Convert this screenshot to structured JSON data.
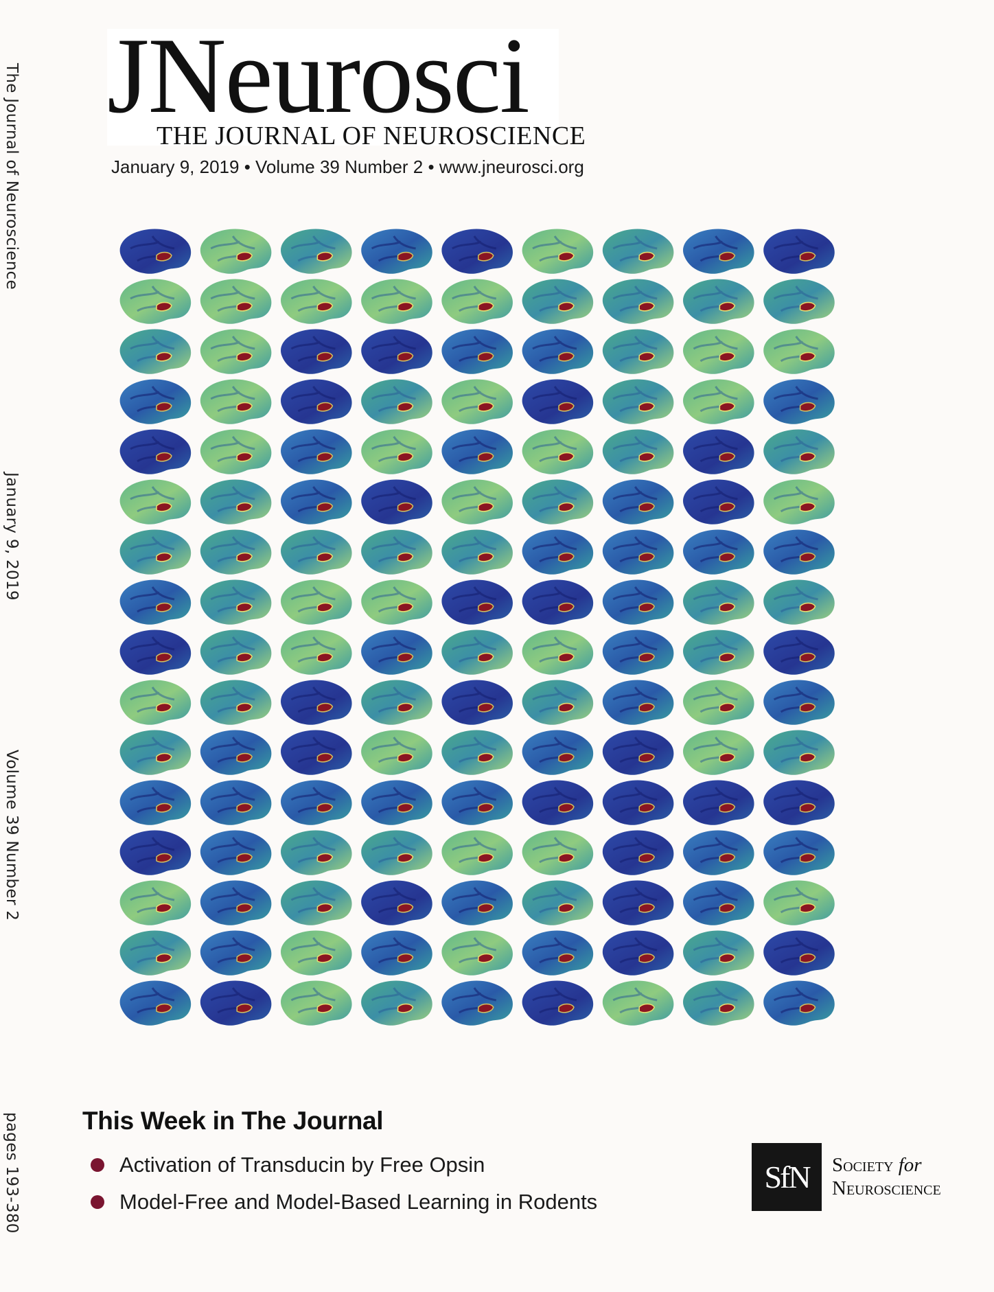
{
  "spine": {
    "journal": "The Journal of Neuroscience",
    "date": "January 9, 2019",
    "volume": "Volume 39 Number 2",
    "pages": "pages 193-380"
  },
  "masthead": {
    "logo": "JNeurosci",
    "subtitle": "THE JOURNAL OF NEUROSCIENCE",
    "issue_line": "January 9, 2019 • Volume 39 Number 2 • www.jneurosci.org"
  },
  "cover_art": {
    "rows": 16,
    "cols": 9,
    "colors": {
      "dark": "#2b3c96",
      "mid": "#2f74b4",
      "light": "#46a98e",
      "pale": "#9fd27e",
      "highlight": "#8b1522"
    }
  },
  "this_week": {
    "heading": "This Week in The Journal",
    "articles": [
      "Activation of Transducin by Free Opsin",
      "Model-Free and Model-Based Learning in Rodents"
    ],
    "bullet_color": "#7a1530"
  },
  "publisher": {
    "logo": "SfN",
    "name_line1": "Society",
    "name_for": "for",
    "name_line2": "Neuroscience"
  }
}
